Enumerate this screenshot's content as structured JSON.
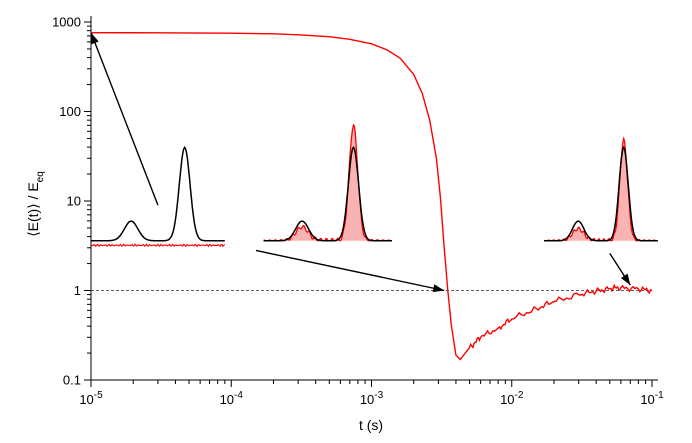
{
  "chart_data": {
    "type": "line",
    "title": "",
    "xlabel": "t (s)",
    "ylabel": "⟨E(t)⟩ / E",
    "ylabel_subscript": "eq",
    "x_scale": "log",
    "y_scale": "log",
    "xlim": [
      1e-05,
      0.1
    ],
    "ylim": [
      0.1,
      1000
    ],
    "x_ticks": [
      {
        "value": 1e-05,
        "base": "10",
        "exp": "-5"
      },
      {
        "value": 0.0001,
        "base": "10",
        "exp": "-4"
      },
      {
        "value": 0.001,
        "base": "10",
        "exp": "-3"
      },
      {
        "value": 0.01,
        "base": "10",
        "exp": "-2"
      },
      {
        "value": 0.1,
        "base": "10",
        "exp": "-1"
      }
    ],
    "y_ticks": [
      {
        "value": 0.1,
        "label": "0.1"
      },
      {
        "value": 1,
        "label": "1"
      },
      {
        "value": 10,
        "label": "10"
      },
      {
        "value": 100,
        "label": "100"
      },
      {
        "value": 1000,
        "label": "1000"
      }
    ],
    "grid": false,
    "series": [
      {
        "color": "#ff0000",
        "points": [
          [
            1e-05,
            760
          ],
          [
            3e-05,
            758
          ],
          [
            0.0001,
            750
          ],
          [
            0.0002,
            738
          ],
          [
            0.0003,
            720
          ],
          [
            0.0005,
            685
          ],
          [
            0.0007,
            640
          ],
          [
            0.001,
            570
          ],
          [
            0.0013,
            485
          ],
          [
            0.0016,
            395
          ],
          [
            0.002,
            260
          ],
          [
            0.0023,
            160
          ],
          [
            0.0026,
            80
          ],
          [
            0.0029,
            30
          ],
          [
            0.0031,
            11
          ],
          [
            0.0033,
            3
          ],
          [
            0.0035,
            1.0
          ],
          [
            0.0037,
            0.42
          ],
          [
            0.004,
            0.19
          ],
          [
            0.0043,
            0.17
          ],
          [
            0.005,
            0.23
          ],
          [
            0.006,
            0.3
          ],
          [
            0.008,
            0.38
          ],
          [
            0.01,
            0.48
          ],
          [
            0.015,
            0.63
          ],
          [
            0.02,
            0.75
          ],
          [
            0.03,
            0.9
          ],
          [
            0.04,
            0.98
          ],
          [
            0.05,
            1.05
          ],
          [
            0.06,
            1.08
          ],
          [
            0.08,
            1.04
          ],
          [
            0.1,
            1.0
          ]
        ]
      }
    ],
    "reference_line": {
      "y": 1,
      "style": "dotted",
      "color": "#606060"
    },
    "annotations": {
      "arrow_color": "#000000",
      "profile_colors": {
        "black": "#000000",
        "red": "#ff0000",
        "fill": "#f9b3b3"
      },
      "arrows": [
        {
          "from": [
            3e-05,
            9
          ],
          "to": [
            1e-05,
            760
          ]
        },
        {
          "from": [
            0.00015,
            2.8
          ],
          "to": [
            0.0033,
            1.0
          ]
        },
        {
          "from": [
            0.05,
            2.6
          ],
          "to": [
            0.07,
            1.15
          ]
        }
      ],
      "insets": [
        {
          "x_start": 1e-05,
          "x_end": 9e-05,
          "black_peak": 45,
          "red_height": 3.2,
          "red_filled": false,
          "red_peak_scale": 0
        },
        {
          "x_start": 0.00017,
          "x_end": 0.0014,
          "black_peak": 45,
          "red_height": 70,
          "red_filled": true,
          "red_peak_scale": 1.0
        },
        {
          "x_start": 0.017,
          "x_end": 0.11,
          "black_peak": 45,
          "red_height": 48,
          "red_filled": true,
          "red_peak_scale": 1.0
        }
      ]
    }
  }
}
